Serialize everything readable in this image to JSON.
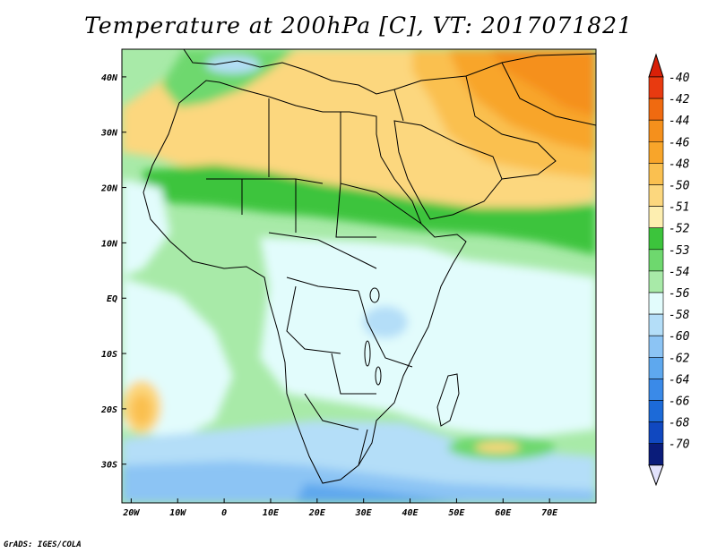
{
  "title": "Temperature at 200hPa [C], VT: 2017071821",
  "credit": "GrADS: IGES/COLA",
  "map": {
    "lon_range": [
      -22,
      80
    ],
    "lat_range": [
      -37,
      45
    ],
    "lon_ticks": [
      {
        "value": -20,
        "label": "20W"
      },
      {
        "value": -10,
        "label": "10W"
      },
      {
        "value": 0,
        "label": "0"
      },
      {
        "value": 10,
        "label": "10E"
      },
      {
        "value": 20,
        "label": "20E"
      },
      {
        "value": 30,
        "label": "30E"
      },
      {
        "value": 40,
        "label": "40E"
      },
      {
        "value": 50,
        "label": "50E"
      },
      {
        "value": 60,
        "label": "60E"
      },
      {
        "value": 70,
        "label": "70E"
      }
    ],
    "lat_ticks": [
      {
        "value": 40,
        "label": "40N"
      },
      {
        "value": 30,
        "label": "30N"
      },
      {
        "value": 20,
        "label": "20N"
      },
      {
        "value": 10,
        "label": "10N"
      },
      {
        "value": 0,
        "label": "EQ"
      },
      {
        "value": -10,
        "label": "10S"
      },
      {
        "value": -20,
        "label": "20S"
      },
      {
        "value": -30,
        "label": "30S"
      }
    ]
  },
  "colorbar": {
    "levels": [
      {
        "label": "-40",
        "color": "#e83a10"
      },
      {
        "label": "-42",
        "color": "#f06a10"
      },
      {
        "label": "-44",
        "color": "#f5901c"
      },
      {
        "label": "-46",
        "color": "#f8a52a"
      },
      {
        "label": "-48",
        "color": "#fac050"
      },
      {
        "label": "-50",
        "color": "#fcd77e"
      },
      {
        "label": "-51",
        "color": "#fdeeb0"
      },
      {
        "label": "-52",
        "color": "#3cc43c"
      },
      {
        "label": "-53",
        "color": "#6ed86e"
      },
      {
        "label": "-54",
        "color": "#a8eaa8"
      },
      {
        "label": "-56",
        "color": "#e2fcfc"
      },
      {
        "label": "-58",
        "color": "#b4def8"
      },
      {
        "label": "-60",
        "color": "#8cc4f4"
      },
      {
        "label": "-62",
        "color": "#5ea8ee"
      },
      {
        "label": "-64",
        "color": "#3a8ae8"
      },
      {
        "label": "-66",
        "color": "#1c6ad8"
      },
      {
        "label": "-68",
        "color": "#1048c0"
      },
      {
        "label": "-70",
        "color": "#0a1c7a"
      }
    ],
    "top_arrow_color": "#d82008",
    "bottom_arrow_color": "#e2e2fc"
  }
}
